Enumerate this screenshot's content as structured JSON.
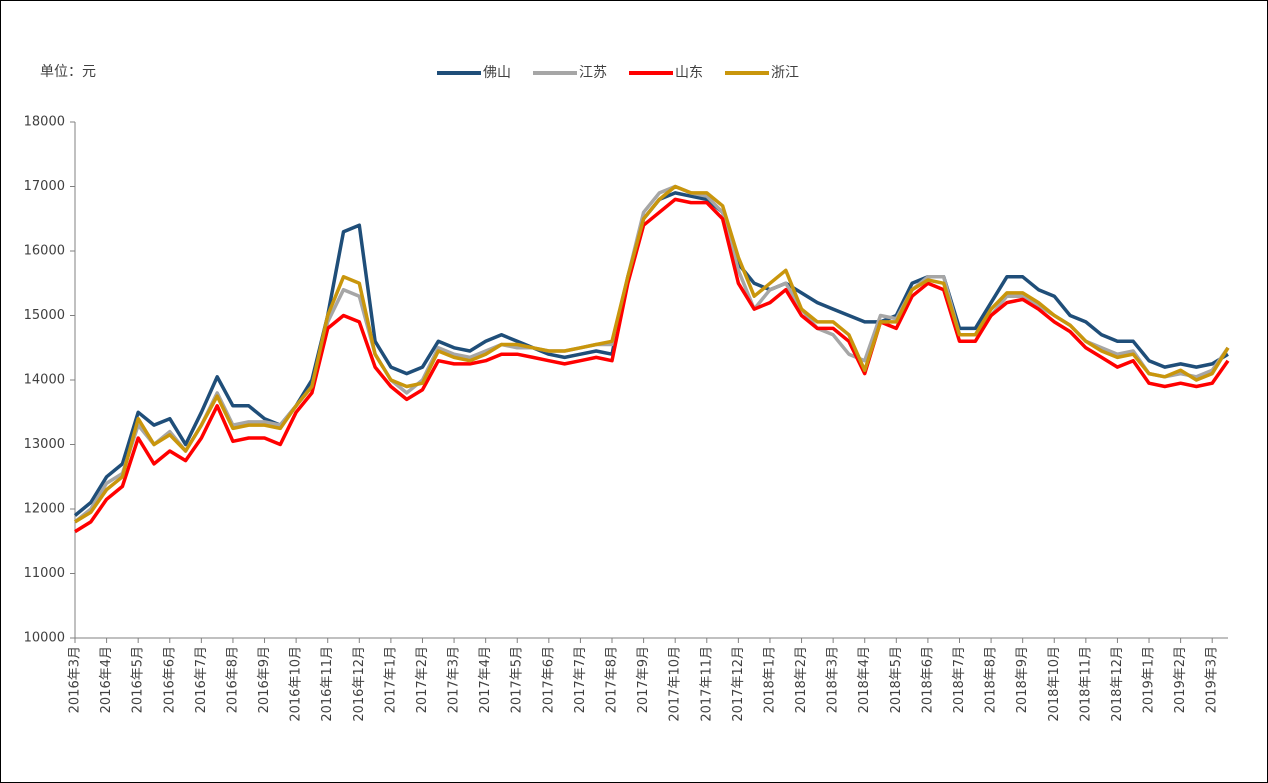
{
  "chart_data": {
    "type": "line",
    "unit_note": "单位：元",
    "categories": [
      "2016年3月",
      null,
      "2016年4月",
      null,
      "2016年5月",
      null,
      "2016年6月",
      null,
      "2016年7月",
      null,
      "2016年8月",
      null,
      "2016年9月",
      null,
      "2016年10月",
      null,
      "2016年11月",
      null,
      "2016年12月",
      null,
      "2017年1月",
      null,
      "2017年2月",
      null,
      "2017年3月",
      null,
      "2017年4月",
      null,
      "2017年5月",
      null,
      "2017年6月",
      null,
      "2017年7月",
      null,
      "2017年8月",
      null,
      "2017年9月",
      null,
      "2017年10月",
      null,
      "2017年11月",
      null,
      "2017年12月",
      null,
      "2018年1月",
      null,
      "2018年2月",
      null,
      "2018年3月",
      null,
      "2018年4月",
      null,
      "2018年5月",
      null,
      "2018年6月",
      null,
      "2018年7月",
      null,
      "2018年8月",
      null,
      "2018年9月",
      null,
      "2018年10月",
      null,
      "2018年11月",
      null,
      "2018年12月",
      null,
      "2019年1月",
      null,
      "2019年2月",
      null,
      "2019年3月",
      null
    ],
    "series": [
      {
        "name": "佛山",
        "color": "#1f4e79",
        "values": [
          11900,
          12100,
          12500,
          12700,
          13500,
          13300,
          13400,
          13000,
          13500,
          14050,
          13600,
          13600,
          13400,
          13300,
          13600,
          14000,
          15000,
          16300,
          16400,
          14600,
          14200,
          14100,
          14200,
          14600,
          14500,
          14450,
          14600,
          14700,
          14600,
          14500,
          14400,
          14350,
          14400,
          14450,
          14400,
          15600,
          16500,
          16800,
          16900,
          16850,
          16800,
          16600,
          15800,
          15500,
          15400,
          15500,
          15350,
          15200,
          15100,
          15000,
          14900,
          14900,
          15000,
          15500,
          15600,
          15600,
          14800,
          14800,
          15200,
          15600,
          15600,
          15400,
          15300,
          15000,
          14900,
          14700,
          14600,
          14600,
          14300,
          14200,
          14250,
          14200,
          14250,
          14400
        ]
      },
      {
        "name": "江苏",
        "color": "#a6a6a6",
        "values": [
          11800,
          12000,
          12400,
          12550,
          13300,
          13000,
          13200,
          12900,
          13300,
          13800,
          13300,
          13350,
          13350,
          13300,
          13600,
          13900,
          14900,
          15400,
          15300,
          14400,
          14000,
          13800,
          14000,
          14500,
          14400,
          14350,
          14450,
          14550,
          14500,
          14500,
          14450,
          14450,
          14500,
          14550,
          14550,
          15600,
          16600,
          16900,
          17000,
          16900,
          16850,
          16600,
          15700,
          15100,
          15400,
          15500,
          15100,
          14800,
          14700,
          14400,
          14300,
          15000,
          14950,
          15400,
          15600,
          15600,
          14700,
          14700,
          15000,
          15300,
          15300,
          15150,
          15000,
          14850,
          14600,
          14500,
          14400,
          14450,
          14100,
          14050,
          14100,
          14050,
          14150,
          14500
        ]
      },
      {
        "name": "山东",
        "color": "#ff0000",
        "values": [
          11650,
          11800,
          12150,
          12350,
          13100,
          12700,
          12900,
          12750,
          13100,
          13600,
          13050,
          13100,
          13100,
          13000,
          13500,
          13800,
          14800,
          15000,
          14900,
          14200,
          13900,
          13700,
          13850,
          14300,
          14250,
          14250,
          14300,
          14400,
          14400,
          14350,
          14300,
          14250,
          14300,
          14350,
          14300,
          15500,
          16400,
          16600,
          16800,
          16750,
          16750,
          16500,
          15500,
          15100,
          15200,
          15400,
          15000,
          14800,
          14800,
          14600,
          14100,
          14900,
          14800,
          15300,
          15500,
          15400,
          14600,
          14600,
          15000,
          15200,
          15250,
          15100,
          14900,
          14750,
          14500,
          14350,
          14200,
          14300,
          13950,
          13900,
          13950,
          13900,
          13950,
          14300
        ]
      },
      {
        "name": "浙江",
        "color": "#c9960c",
        "values": [
          11800,
          11950,
          12300,
          12500,
          13400,
          13000,
          13150,
          12900,
          13300,
          13750,
          13250,
          13300,
          13300,
          13250,
          13600,
          13900,
          15000,
          15600,
          15500,
          14400,
          14000,
          13900,
          13950,
          14450,
          14350,
          14300,
          14400,
          14550,
          14550,
          14500,
          14450,
          14450,
          14500,
          14550,
          14600,
          15600,
          16500,
          16800,
          17000,
          16900,
          16900,
          16700,
          15900,
          15300,
          15500,
          15700,
          15100,
          14900,
          14900,
          14700,
          14150,
          14900,
          14900,
          15400,
          15550,
          15500,
          14700,
          14700,
          15100,
          15350,
          15350,
          15200,
          15000,
          14850,
          14600,
          14450,
          14350,
          14400,
          14100,
          14050,
          14150,
          14000,
          14100,
          14500
        ]
      }
    ],
    "ylim": [
      10000,
      18000
    ],
    "yticks": [
      10000,
      11000,
      12000,
      13000,
      14000,
      15000,
      16000,
      17000,
      18000
    ],
    "grid": false,
    "legend": "top"
  }
}
